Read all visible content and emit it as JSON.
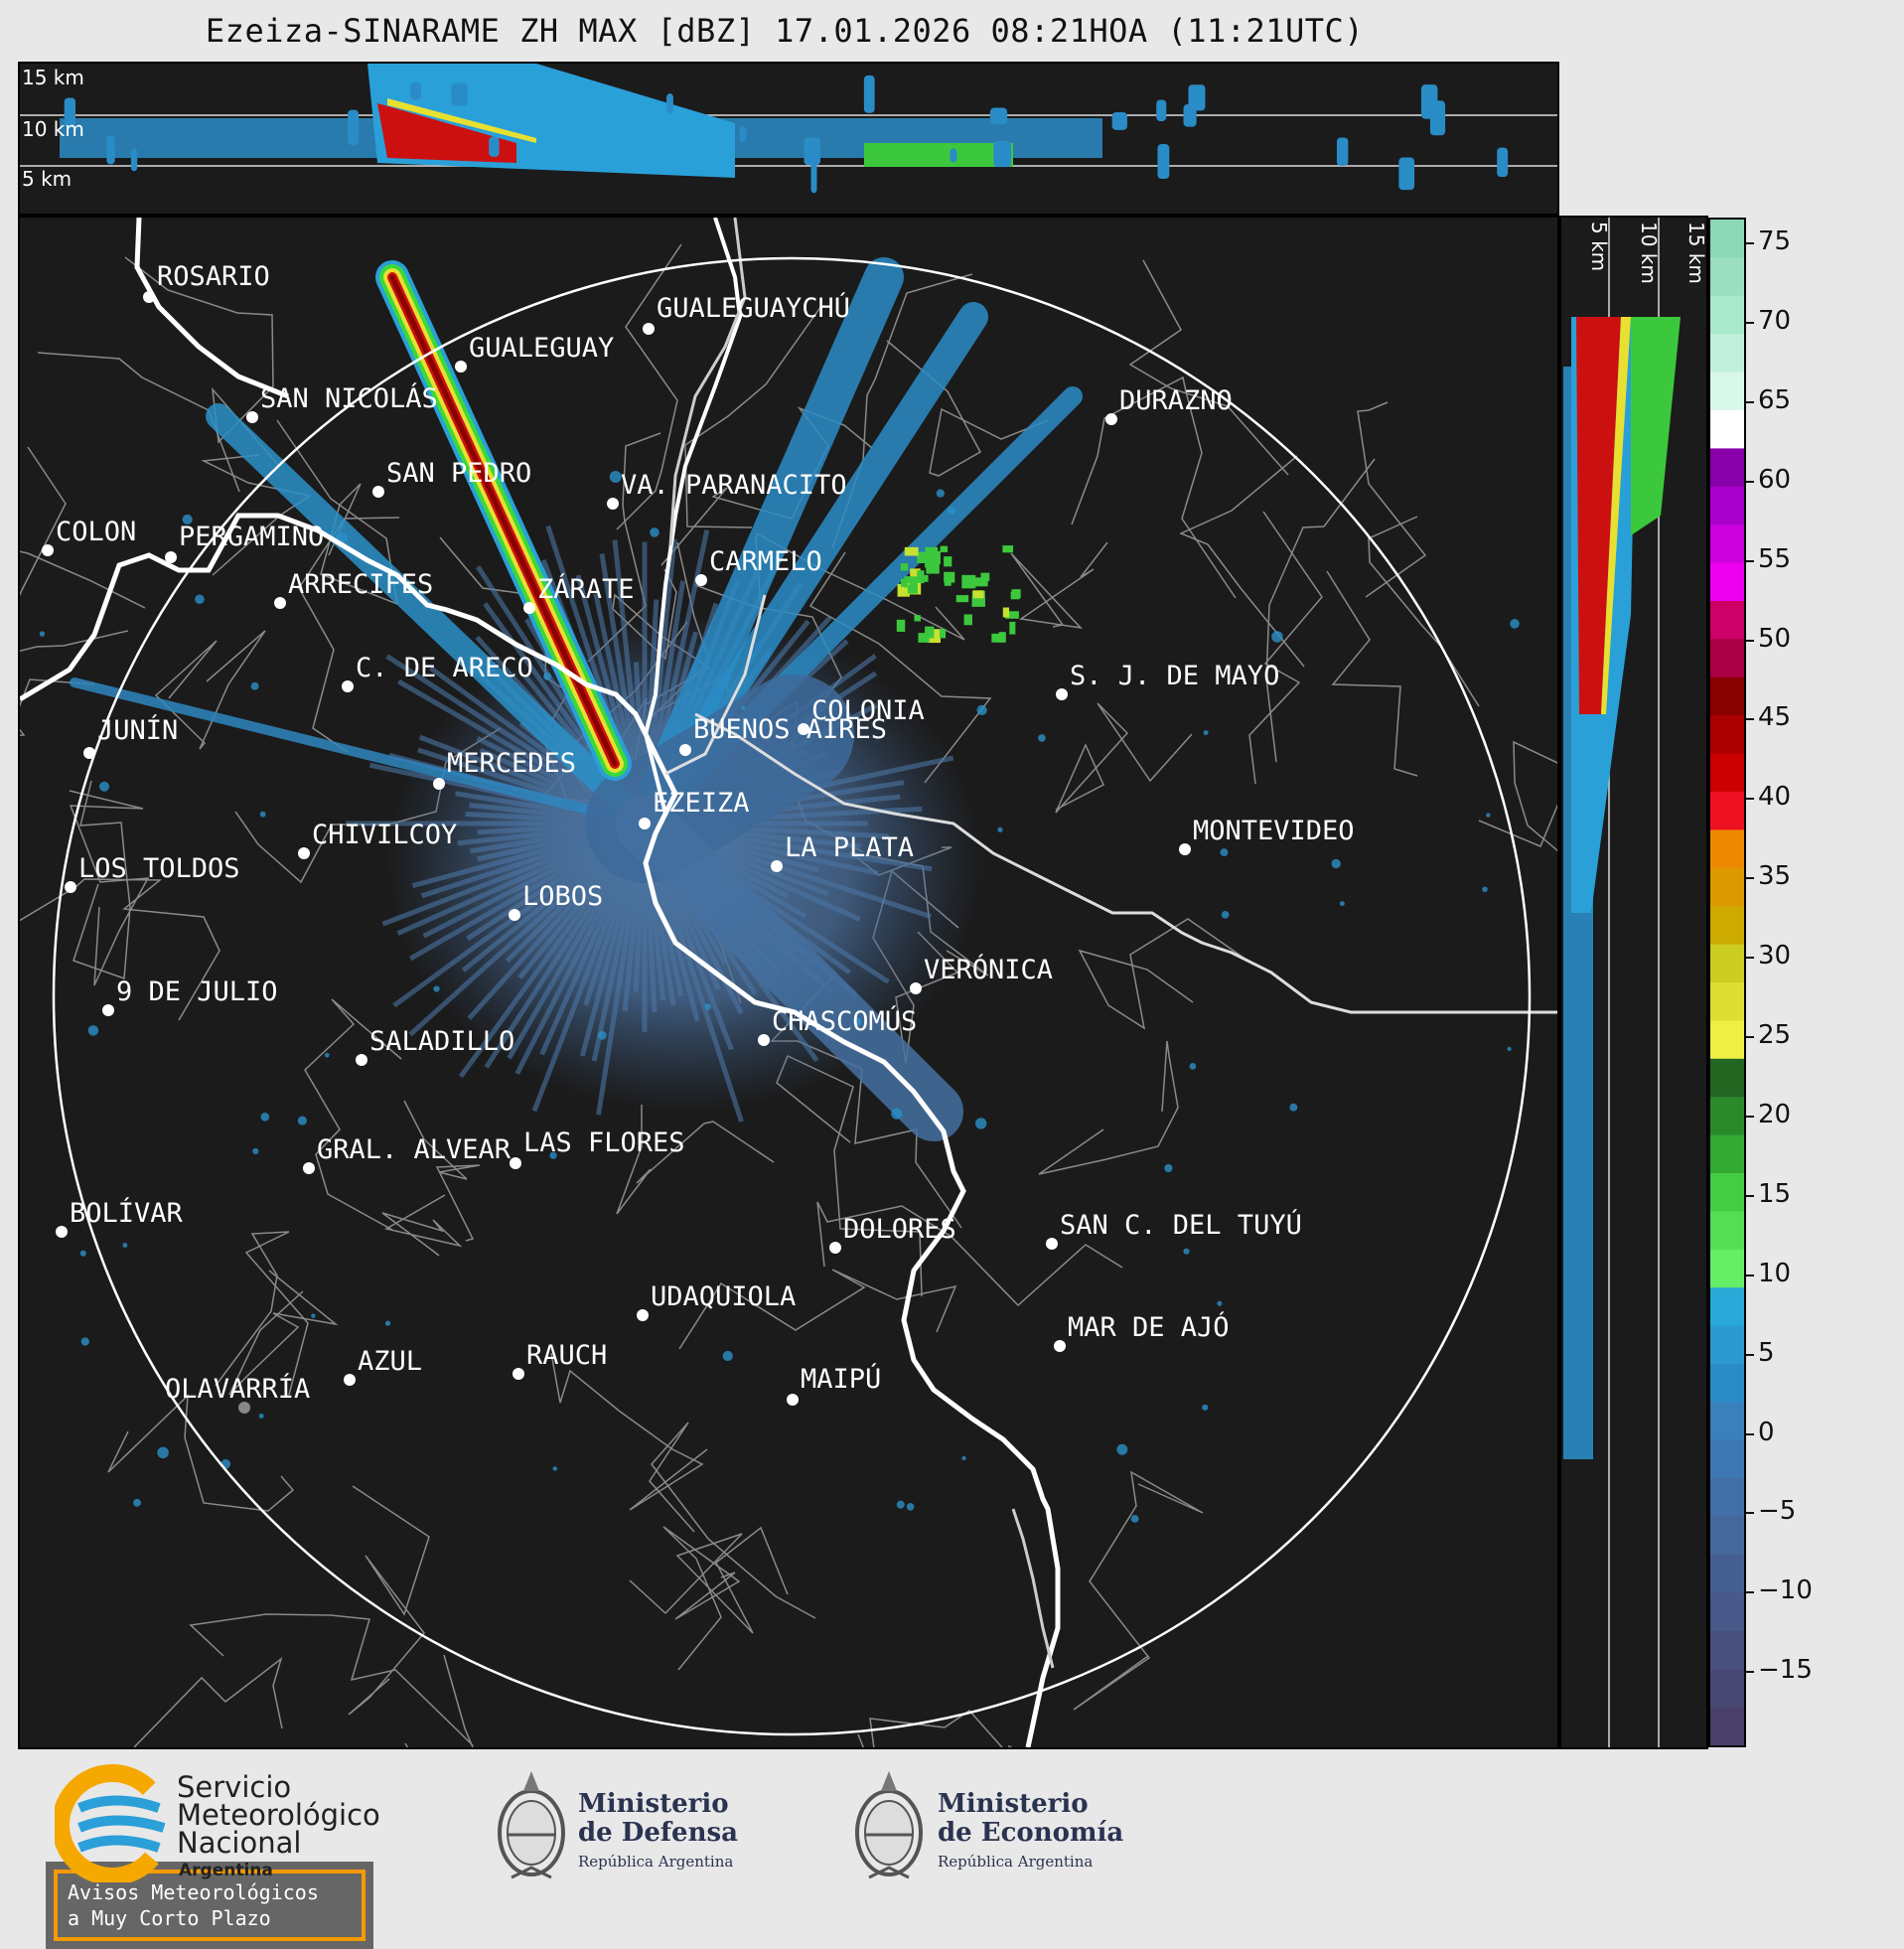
{
  "title": "Ezeiza-SINARAME ZH MAX [dBZ] 17.01.2026 08:21HOA (11:21UTC)",
  "top_panel": {
    "height_labels": [
      "15 km",
      "10 km",
      "5 km"
    ]
  },
  "side_panel": {
    "height_labels": [
      "5 km",
      "10 km",
      "15 km"
    ]
  },
  "colorbar": {
    "unit": "dBZ",
    "ticks": [
      "75",
      "70",
      "65",
      "60",
      "55",
      "50",
      "45",
      "40",
      "35",
      "30",
      "25",
      "20",
      "15",
      "10",
      "5",
      "0",
      "−5",
      "−10",
      "−15"
    ]
  },
  "cities": [
    {
      "name": "ROSARIO"
    },
    {
      "name": "GUALEGUAYCHÚ"
    },
    {
      "name": "GUALEGUAY"
    },
    {
      "name": "SAN NICOLÁS"
    },
    {
      "name": "DURAZNO"
    },
    {
      "name": "SAN PEDRO"
    },
    {
      "name": "VA. PARANACITO"
    },
    {
      "name": "COLON"
    },
    {
      "name": "PERGAMINO"
    },
    {
      "name": "CARMELO"
    },
    {
      "name": "ARRECIFES"
    },
    {
      "name": "ZÁRATE"
    },
    {
      "name": "C. DE ARECO"
    },
    {
      "name": "S. J. DE MAYO"
    },
    {
      "name": "COLONIA"
    },
    {
      "name": "JUNÍN"
    },
    {
      "name": "BUENOS AIRES"
    },
    {
      "name": "MERCEDES"
    },
    {
      "name": "EZEIZA"
    },
    {
      "name": "CHIVILCOY"
    },
    {
      "name": "LA PLATA"
    },
    {
      "name": "MONTEVIDEO"
    },
    {
      "name": "LOS TOLDOS"
    },
    {
      "name": "LOBOS"
    },
    {
      "name": "VERÓNICA"
    },
    {
      "name": "9 DE JULIO"
    },
    {
      "name": "CHASCOMÚS"
    },
    {
      "name": "SALADILLO"
    },
    {
      "name": "GRAL. ALVEAR"
    },
    {
      "name": "LAS FLORES"
    },
    {
      "name": "BOLÍVAR"
    },
    {
      "name": "DOLORES"
    },
    {
      "name": "SAN C. DEL TUYÚ"
    },
    {
      "name": "UDAQUIOLA"
    },
    {
      "name": "MAR DE AJÓ"
    },
    {
      "name": "AZUL"
    },
    {
      "name": "RAUCH"
    },
    {
      "name": "MAIPÚ"
    },
    {
      "name": "OLAVARRÍA"
    }
  ],
  "warning_box": {
    "line1": "Avisos Meteorológicos",
    "line2": "a Muy Corto Plazo"
  },
  "footer": {
    "smn": {
      "line1": "Servicio",
      "line2": "Meteorológico",
      "line3": "Nacional",
      "line4": "Argentina"
    },
    "defensa": {
      "line1": "Ministerio",
      "line2": "de Defensa",
      "line3": "República Argentina"
    },
    "economia": {
      "line1": "Ministerio",
      "line2": "de Economía",
      "line3": "República Argentina"
    }
  }
}
